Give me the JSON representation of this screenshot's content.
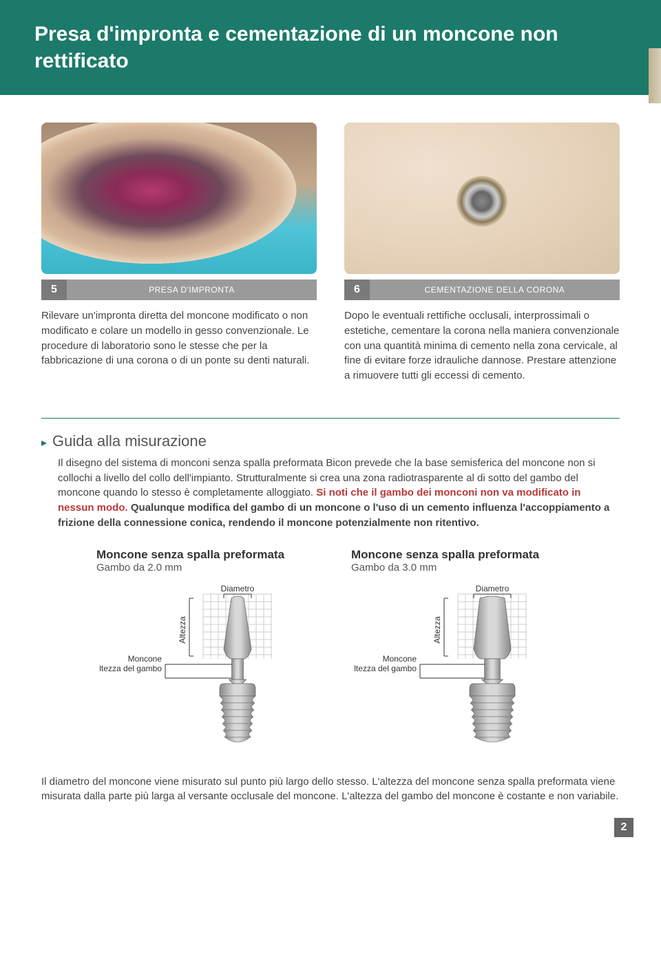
{
  "header": {
    "title": "Presa d'impronta e cementazione di un moncone non rettificato"
  },
  "steps": [
    {
      "num": "5",
      "label": "PRESA D'IMPRONTA",
      "text": "Rilevare un'impronta diretta del moncone modificato o non modificato e colare un modello in gesso convenzionale. Le procedure di laboratorio sono le stesse che per la fabbricazione di una corona o di un ponte su denti naturali."
    },
    {
      "num": "6",
      "label": "CEMENTAZIONE DELLA CORONA",
      "text": "Dopo le eventuali rettifiche occlusali, interprossimali o estetiche, cementare la corona nella maniera convenzionale con una quantità minima di cemento nella zona cervicale, al fine di evitare forze idrauliche dannose. Prestare attenzione a rimuovere tutti gli eccessi di cemento."
    }
  ],
  "guide": {
    "heading": "Guida alla misurazione",
    "body_plain": "Il disegno del sistema di monconi senza spalla preformata Bicon prevede che la base semisferica del moncone non si collochi a livello del collo dell'impianto. Strutturalmente si crea una zona radiotrasparente al di sotto del gambo del moncone quando lo stesso è completamente alloggiato. ",
    "body_red": "Si noti che il gambo dei monconi non va modificato in nessun modo.",
    "body_bold": " Qualunque modifica del gambo di un moncone o l'uso di un cemento influenza l'accoppiamento a frizione della connessione conica, rendendo il moncone potenzialmente non ritentivo."
  },
  "diagrams": [
    {
      "title": "Moncone senza spalla preformata",
      "sub": "Gambo da 2.0 mm",
      "labels": {
        "diametro": "Diametro",
        "altezza": "Altezza",
        "moncone": "Moncone",
        "altezza_gambo": "Altezza del gambo"
      },
      "implant_width": 40,
      "implant_top_width": 18
    },
    {
      "title": "Moncone senza spalla preformata",
      "sub": "Gambo da 3.0 mm",
      "labels": {
        "diametro": "Diametro",
        "altezza": "Altezza",
        "moncone": "Moncone",
        "altezza_gambo": "Altezza del gambo"
      },
      "implant_width": 54,
      "implant_top_width": 36
    }
  ],
  "footer": {
    "text": "Il diametro del moncone viene misurato sul punto più largo dello stesso. L'altezza del moncone senza spalla preformata viene misurata dalla parte più larga al versante occlusale del moncone. L'altezza del gambo del moncone è costante e non variabile.",
    "page": "2"
  },
  "colors": {
    "header_bg": "#1c7a6a",
    "caption_bg": "#9a9a9a",
    "caption_num_bg": "#7a7a7a",
    "red": "#b83a3a",
    "implant_fill": "#b8b8b8",
    "implant_dark": "#888888",
    "implant_light": "#d8d8d8",
    "grid": "#cccccc"
  }
}
